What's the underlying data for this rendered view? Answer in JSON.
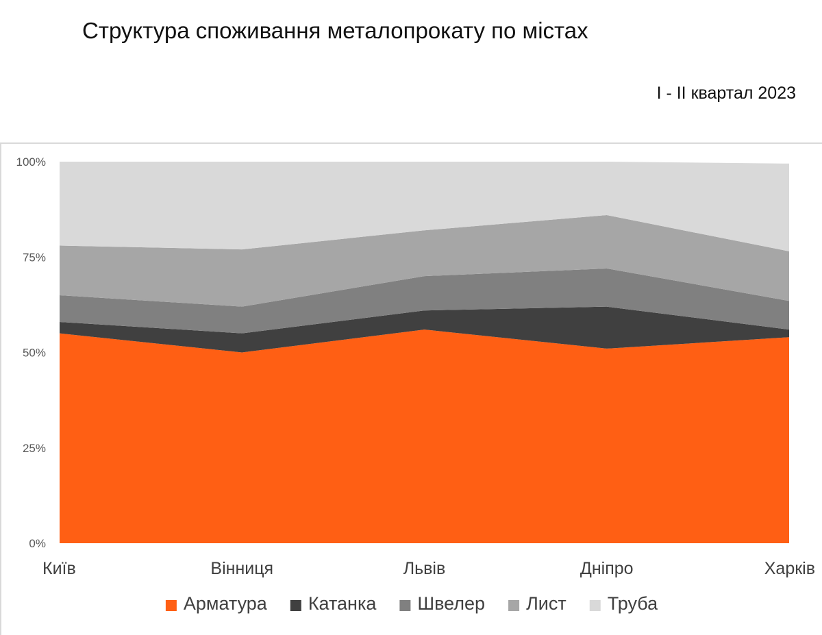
{
  "header": {
    "title": "Структура споживання металопрокату по містах",
    "subtitle": "I - II квартал 2023"
  },
  "chart_data": {
    "type": "area",
    "stacked": true,
    "percent": true,
    "categories": [
      "Київ",
      "Вінниця",
      "Львів",
      "Дніпро",
      "Харків"
    ],
    "series": [
      {
        "name": "Арматура",
        "color": "#ff5f14",
        "values": [
          55,
          50,
          56,
          51,
          54
        ]
      },
      {
        "name": "Катанка",
        "color": "#404040",
        "values": [
          3,
          5,
          5,
          11,
          2
        ]
      },
      {
        "name": "Швелер",
        "color": "#808080",
        "values": [
          7,
          7,
          9,
          10,
          7.5
        ]
      },
      {
        "name": "Лист",
        "color": "#a6a6a6",
        "values": [
          13,
          15,
          12,
          14,
          13
        ]
      },
      {
        "name": "Труба",
        "color": "#d9d9d9",
        "values": [
          22,
          23,
          18,
          14,
          23
        ]
      }
    ],
    "y_ticks": [
      "0%",
      "25%",
      "50%",
      "75%",
      "100%"
    ],
    "ylim": [
      0,
      100
    ],
    "grid": false,
    "legend": "bottom"
  }
}
